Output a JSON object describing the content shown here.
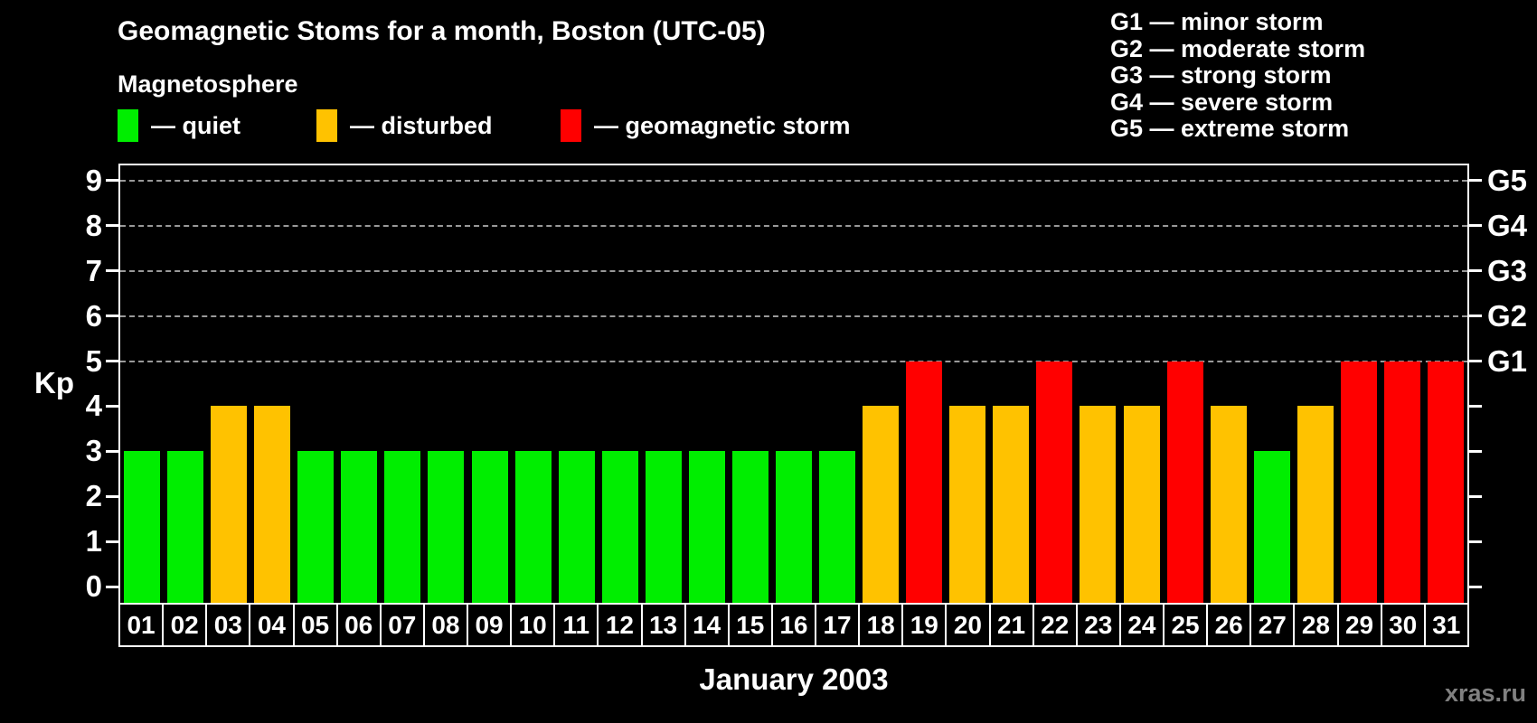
{
  "title": "Geomagnetic Stoms for a month, Boston (UTC-05)",
  "watermark": "xras.ru",
  "legend": {
    "heading": "Magnetosphere",
    "items": [
      {
        "label": "— quiet",
        "color": "#00EE00"
      },
      {
        "label": "— disturbed",
        "color": "#FFC200"
      },
      {
        "label": "— geomagnetic storm",
        "color": "#FF0000"
      }
    ]
  },
  "gscale_legend": [
    "G1 — minor storm",
    "G2 — moderate storm",
    "G3 — strong storm",
    "G4 — severe storm",
    "G5 — extreme storm"
  ],
  "chart_data": {
    "type": "bar",
    "title": "Geomagnetic Stoms for a month, Boston (UTC-05)",
    "xlabel": "January 2003",
    "ylabel": "Kp",
    "ylim": [
      -0.36,
      9.38
    ],
    "yticks": [
      0,
      1,
      2,
      3,
      4,
      5,
      6,
      7,
      8,
      9
    ],
    "gridlines_at": [
      5,
      6,
      7,
      8,
      9
    ],
    "g_labels": {
      "5": "G1",
      "6": "G2",
      "7": "G3",
      "8": "G4",
      "9": "G5"
    },
    "legend_position": "top",
    "grid": "dashed horizontal at storm levels only",
    "categories": [
      "01",
      "02",
      "03",
      "04",
      "05",
      "06",
      "07",
      "08",
      "09",
      "10",
      "11",
      "12",
      "13",
      "14",
      "15",
      "16",
      "17",
      "18",
      "19",
      "20",
      "21",
      "22",
      "23",
      "24",
      "25",
      "26",
      "27",
      "28",
      "29",
      "30",
      "31"
    ],
    "values": [
      3,
      3,
      4,
      4,
      3,
      3,
      3,
      3,
      3,
      3,
      3,
      3,
      3,
      3,
      3,
      3,
      3,
      4,
      5,
      4,
      4,
      5,
      4,
      4,
      5,
      4,
      3,
      4,
      5,
      5,
      5
    ],
    "colors_by_value": {
      "3": "#00EE00",
      "4": "#FFC200",
      "5": "#FF0000"
    },
    "value_meaning": {
      "3": "quiet",
      "4": "disturbed",
      "5": "geomagnetic storm"
    }
  }
}
